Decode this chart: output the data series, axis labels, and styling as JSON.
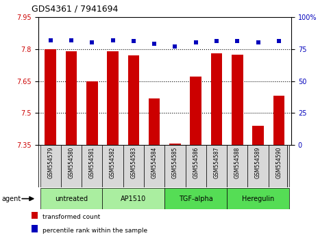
{
  "title": "GDS4361 / 7941694",
  "samples": [
    "GSM554579",
    "GSM554580",
    "GSM554581",
    "GSM554582",
    "GSM554583",
    "GSM554584",
    "GSM554585",
    "GSM554586",
    "GSM554587",
    "GSM554588",
    "GSM554589",
    "GSM554590"
  ],
  "bar_values": [
    7.8,
    7.79,
    7.65,
    7.79,
    7.77,
    7.57,
    7.357,
    7.67,
    7.78,
    7.775,
    7.44,
    7.58
  ],
  "percentile_values": [
    82,
    82,
    80,
    82,
    81,
    79,
    77,
    80,
    81,
    81,
    80,
    81
  ],
  "ylim_left": [
    7.35,
    7.95
  ],
  "ylim_right": [
    0,
    100
  ],
  "yticks_left": [
    7.35,
    7.5,
    7.65,
    7.8,
    7.95
  ],
  "yticks_right": [
    0,
    25,
    50,
    75,
    100
  ],
  "ytick_labels_left": [
    "7.35",
    "7.5",
    "7.65",
    "7.8",
    "7.95"
  ],
  "ytick_labels_right": [
    "0",
    "25",
    "50",
    "75",
    "100%"
  ],
  "grid_lines": [
    7.5,
    7.65,
    7.8
  ],
  "bar_color": "#cc0000",
  "dot_color": "#0000bb",
  "agent_groups": [
    {
      "label": "untreated",
      "start": 0,
      "end": 3,
      "color": "#aaeea0"
    },
    {
      "label": "AP1510",
      "start": 3,
      "end": 6,
      "color": "#aaeea0"
    },
    {
      "label": "TGF-alpha",
      "start": 6,
      "end": 9,
      "color": "#55dd55"
    },
    {
      "label": "Heregulin",
      "start": 9,
      "end": 12,
      "color": "#55dd55"
    }
  ],
  "agent_label": "agent",
  "legend_items": [
    {
      "label": "transformed count",
      "color": "#cc0000"
    },
    {
      "label": "percentile rank within the sample",
      "color": "#0000bb"
    }
  ],
  "tick_label_color_left": "#cc0000",
  "tick_label_color_right": "#0000bb",
  "bg_color": "#ffffff",
  "sample_bg_color": "#d8d8d8",
  "fig_width": 4.83,
  "fig_height": 3.54,
  "dpi": 100
}
